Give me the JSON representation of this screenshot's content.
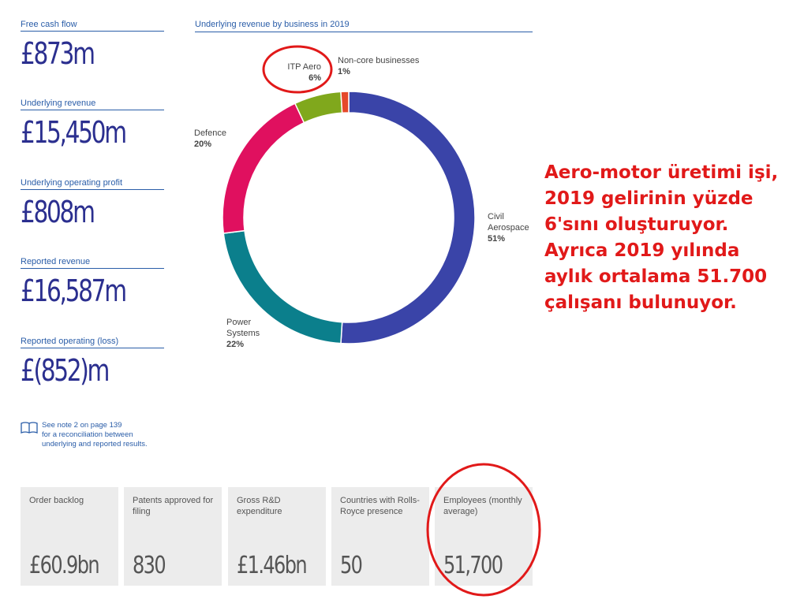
{
  "metrics": [
    {
      "label": "Free cash flow",
      "value": "£873m"
    },
    {
      "label": "Underlying revenue",
      "value": "£15,450m"
    },
    {
      "label": "Underlying operating profit",
      "value": "£808m"
    },
    {
      "label": "Reported revenue",
      "value": "£16,587m"
    },
    {
      "label": "Reported operating (loss)",
      "value": "£(852)m"
    }
  ],
  "note": {
    "line1": "See note 2 on page 139",
    "line2": "for a reconciliation between",
    "line3": "underlying and reported results.",
    "icon": "book-icon"
  },
  "stats": [
    {
      "label": "Order backlog",
      "value": "£60.9bn"
    },
    {
      "label": "Patents approved for filing",
      "value": "830"
    },
    {
      "label": "Gross R&D expenditure",
      "value": "£1.46bn"
    },
    {
      "label": "Countries with Rolls-Royce presence",
      "value": "50"
    },
    {
      "label": "Employees (monthly average)",
      "value": "51,700"
    }
  ],
  "annotation": {
    "text": "Aero-motor üretimi işi, 2019 gelirinin yüzde 6'sını oluşturuyor. Ayrıca 2019 yılında aylık ortalama 51.700 çalışanı bulunuyor.",
    "color": "#e11919"
  },
  "chart_data": {
    "type": "pie",
    "variant": "donut",
    "title": "Underlying revenue by business in 2019",
    "slices": [
      {
        "name": "Civil Aerospace",
        "label_lines": [
          "Civil",
          "Aerospace"
        ],
        "pct_label": "51%",
        "value": 51,
        "color": "#3a44a8"
      },
      {
        "name": "Power Systems",
        "label_lines": [
          "Power",
          "Systems"
        ],
        "pct_label": "22%",
        "value": 22,
        "color": "#0b7f8c"
      },
      {
        "name": "Defence",
        "label_lines": [
          "Defence"
        ],
        "pct_label": "20%",
        "value": 20,
        "color": "#e0105f"
      },
      {
        "name": "ITP Aero",
        "label_lines": [
          "ITP Aero"
        ],
        "pct_label": "6%",
        "value": 6,
        "color": "#80a81c"
      },
      {
        "name": "Non-core businesses",
        "label_lines": [
          "Non-core businesses"
        ],
        "pct_label": "1%",
        "value": 1,
        "color": "#e5482a"
      }
    ],
    "highlight_color": "#e11919"
  }
}
